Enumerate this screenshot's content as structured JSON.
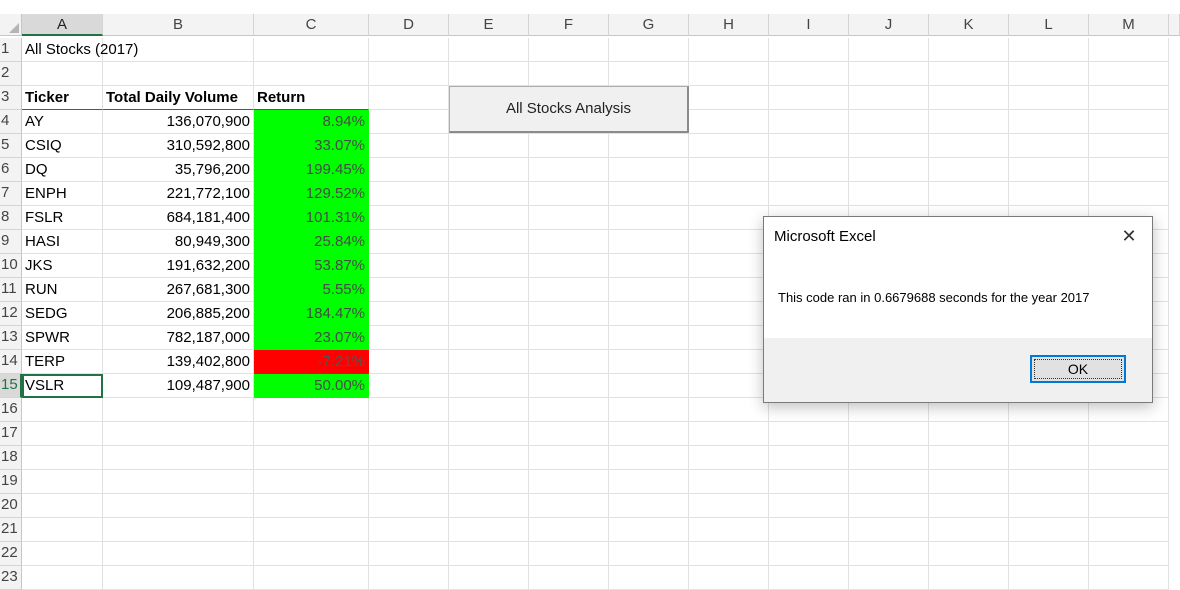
{
  "columns": [
    "A",
    "B",
    "C",
    "D",
    "E",
    "F",
    "G",
    "H",
    "I",
    "J",
    "K",
    "L",
    "M"
  ],
  "rows": [
    "1",
    "2",
    "3",
    "4",
    "5",
    "6",
    "7",
    "8",
    "9",
    "10",
    "11",
    "12",
    "13",
    "14",
    "15",
    "16",
    "17",
    "18",
    "19",
    "20",
    "21",
    "22",
    "23"
  ],
  "sheet_title": "All Stocks (2017)",
  "table": {
    "headers": [
      "Ticker",
      "Total Daily Volume",
      "Return"
    ],
    "rows": [
      {
        "ticker": "AY",
        "volume": "136,070,900",
        "return": "8.94%",
        "status": "positive"
      },
      {
        "ticker": "CSIQ",
        "volume": "310,592,800",
        "return": "33.07%",
        "status": "positive"
      },
      {
        "ticker": "DQ",
        "volume": "35,796,200",
        "return": "199.45%",
        "status": "positive"
      },
      {
        "ticker": "ENPH",
        "volume": "221,772,100",
        "return": "129.52%",
        "status": "positive"
      },
      {
        "ticker": "FSLR",
        "volume": "684,181,400",
        "return": "101.31%",
        "status": "positive"
      },
      {
        "ticker": "HASI",
        "volume": "80,949,300",
        "return": "25.84%",
        "status": "positive"
      },
      {
        "ticker": "JKS",
        "volume": "191,632,200",
        "return": "53.87%",
        "status": "positive"
      },
      {
        "ticker": "RUN",
        "volume": "267,681,300",
        "return": "5.55%",
        "status": "positive"
      },
      {
        "ticker": "SEDG",
        "volume": "206,885,200",
        "return": "184.47%",
        "status": "positive"
      },
      {
        "ticker": "SPWR",
        "volume": "782,187,000",
        "return": "23.07%",
        "status": "positive"
      },
      {
        "ticker": "TERP",
        "volume": "139,402,800",
        "return": "-7.21%",
        "status": "negative"
      },
      {
        "ticker": "VSLR",
        "volume": "109,487,900",
        "return": "50.00%",
        "status": "positive"
      }
    ]
  },
  "macro_button": {
    "label": "All Stocks Analysis"
  },
  "dialog": {
    "title": "Microsoft Excel",
    "message": "This code ran in 0.6679688 seconds for the year 2017",
    "ok_label": "OK",
    "close_glyph": "✕"
  },
  "colors": {
    "positive": "#00ff00",
    "negative": "#ff0000",
    "excel_green": "#217346"
  }
}
